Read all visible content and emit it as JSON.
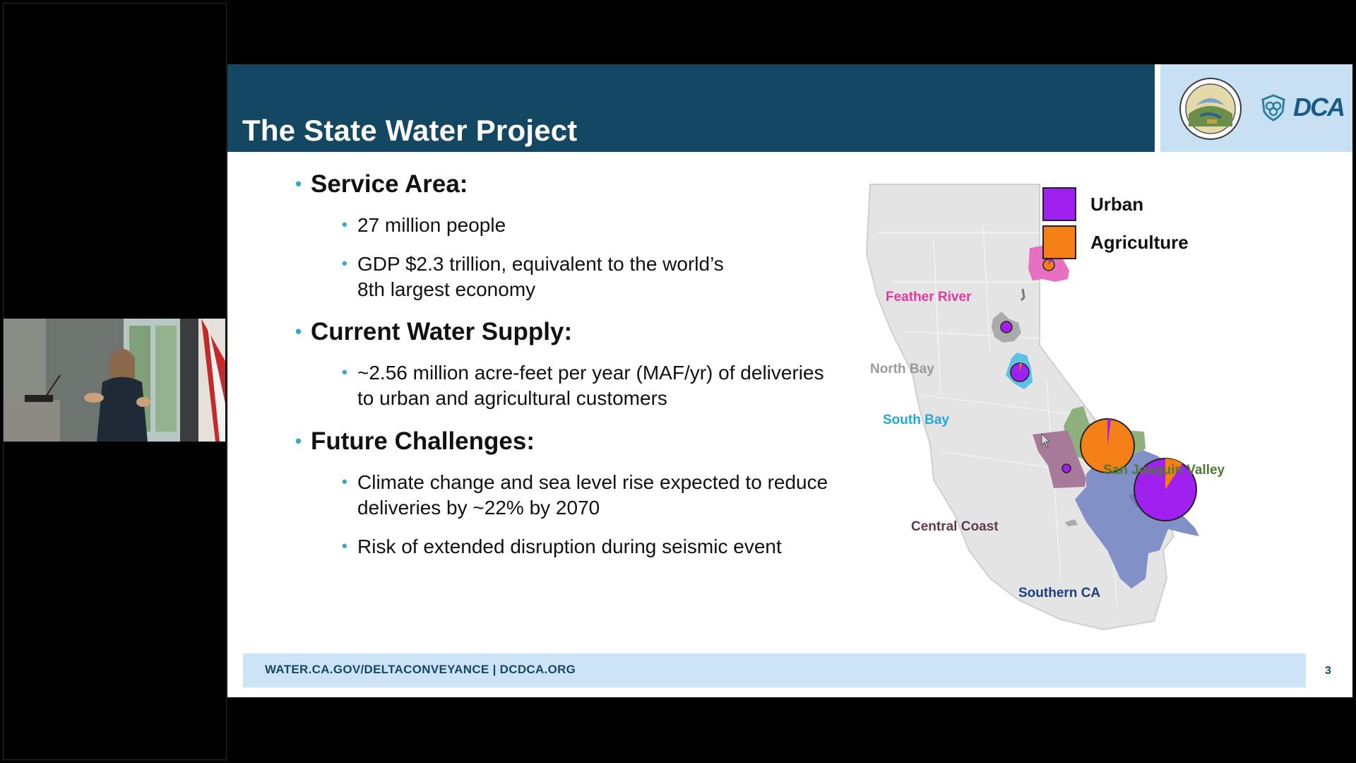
{
  "slide": {
    "title": "The State Water Project",
    "page_number": "3",
    "footer": "WATER.CA.GOV/DELTACONVEYANCE | DCDCA.ORG",
    "logo_text": "DCA",
    "bullets": [
      {
        "heading": "Service Area:",
        "items": [
          "27 million people",
          "GDP $2.3 trillion, equivalent to the world’s 8th largest economy"
        ]
      },
      {
        "heading": "Current Water Supply:",
        "items": [
          "~2.56 million acre-feet per year (MAF/yr) of deliveries to urban and agricultural customers"
        ]
      },
      {
        "heading": "Future Challenges:",
        "items": [
          "Climate change and sea level rise expected to reduce deliveries by ~22% by 2070",
          "Risk of extended disruption during seismic event"
        ]
      }
    ],
    "map": {
      "legend": [
        {
          "label": "Urban",
          "color": "#a020f0"
        },
        {
          "label": "Agriculture",
          "color": "#f57f17"
        }
      ],
      "regions": [
        {
          "name": "Feather River",
          "color": "#e8489a"
        },
        {
          "name": "North Bay",
          "color": "#a8a8a8"
        },
        {
          "name": "South Bay",
          "color": "#2aa8d8"
        },
        {
          "name": "San Joaquin Valley",
          "color": "#5b8b44"
        },
        {
          "name": "Central Coast",
          "color": "#5e3a4e"
        },
        {
          "name": "Southern CA",
          "color": "#1e3f80"
        }
      ]
    }
  }
}
